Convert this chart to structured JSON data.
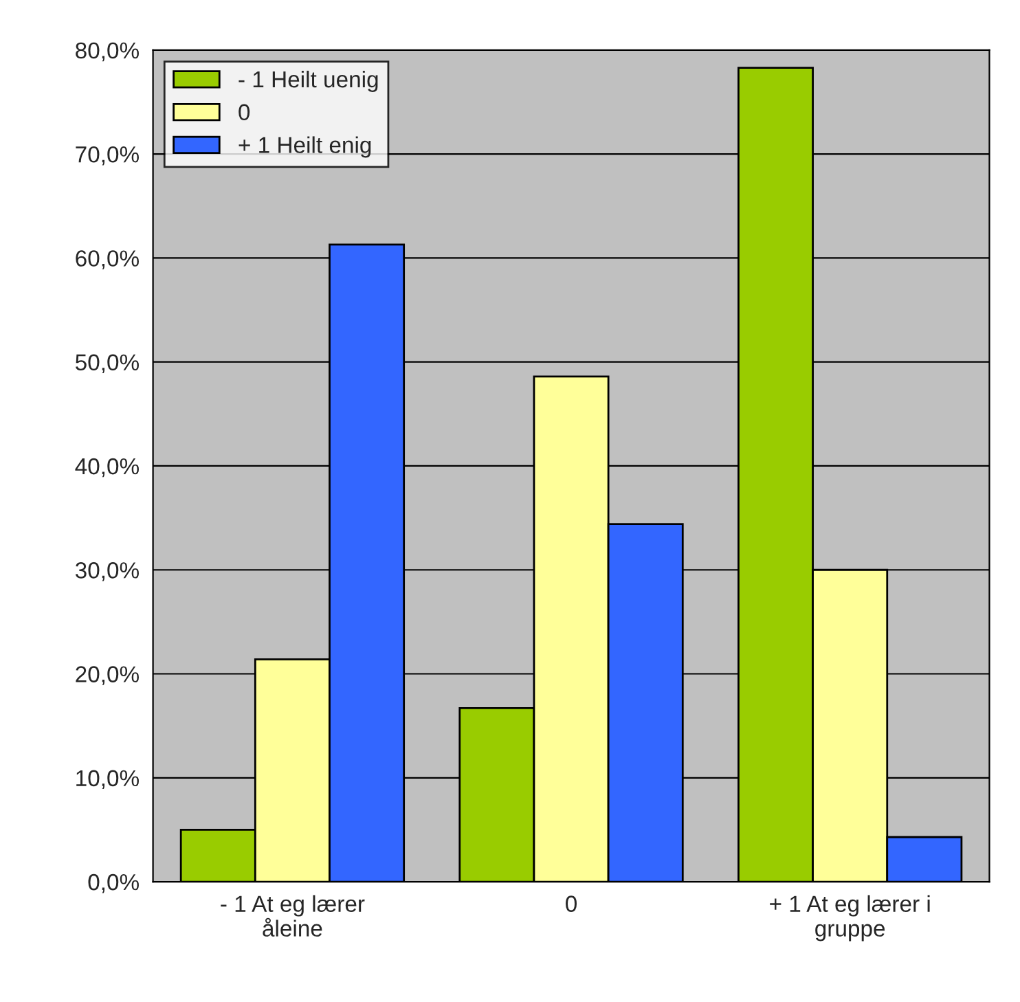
{
  "chart_data": {
    "type": "bar",
    "categories": [
      "- 1 At eg lærer\nåleine",
      "0",
      "+ 1 At eg lærer i\ngruppe"
    ],
    "series": [
      {
        "name": "- 1 Heilt uenig",
        "color": "#99cc00",
        "values": [
          5.0,
          16.7,
          78.3
        ]
      },
      {
        "name": "0",
        "color": "#ffff99",
        "values": [
          21.4,
          48.6,
          30.0
        ]
      },
      {
        "name": "+ 1 Heilt enig",
        "color": "#3366ff",
        "values": [
          61.3,
          34.4,
          4.3
        ]
      }
    ],
    "ylim": [
      0,
      80
    ],
    "yticks": [
      {
        "value": 0,
        "label": "0,0%"
      },
      {
        "value": 10,
        "label": "10,0%"
      },
      {
        "value": 20,
        "label": "20,0%"
      },
      {
        "value": 30,
        "label": "30,0%"
      },
      {
        "value": 40,
        "label": "40,0%"
      },
      {
        "value": 50,
        "label": "50,0%"
      },
      {
        "value": 60,
        "label": "60,0%"
      },
      {
        "value": 70,
        "label": "70,0%"
      },
      {
        "value": 80,
        "label": "80,0%"
      }
    ],
    "grid": "y",
    "legend": "top left"
  }
}
